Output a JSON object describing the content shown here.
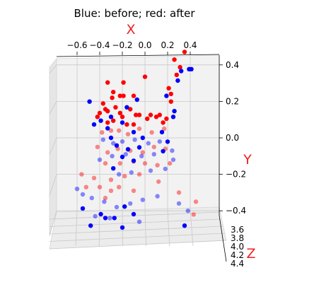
{
  "chart_data": {
    "type": "scatter",
    "title": "Blue: before; red: after",
    "xlabel": "X",
    "ylabel": "Y",
    "zlabel": "Z",
    "axis_label_color": "#ee2222",
    "x_ticks": [
      "−0.6",
      "−0.4",
      "−0.2",
      "0.0",
      "0.2",
      "0.4"
    ],
    "y_ticks": [
      "0.4",
      "0.2",
      "0.0",
      "−0.2",
      "−0.4"
    ],
    "z_ticks": [
      "3.6",
      "3.8",
      "4.0",
      "4.2",
      "4.4"
    ],
    "xlim": [
      -0.72,
      0.5
    ],
    "ylim": [
      -0.5,
      0.5
    ],
    "zlim": [
      3.6,
      4.4
    ],
    "grid": true,
    "series": [
      {
        "color": "#ff0000",
        "points": [
          [
            -0.33,
            0.29,
            0
          ],
          [
            -0.19,
            0.29,
            0
          ],
          [
            -0.28,
            0.24,
            0
          ],
          [
            -0.29,
            0.21,
            0
          ],
          [
            -0.22,
            0.22,
            0
          ],
          [
            0.0,
            0.32,
            0
          ],
          [
            -0.1,
            0.22,
            0
          ],
          [
            0.21,
            0.26,
            0
          ],
          [
            0.23,
            0.23,
            0
          ],
          [
            0.23,
            0.19,
            0
          ],
          [
            0.28,
            0.33,
            0
          ],
          [
            0.26,
            0.41,
            0
          ],
          [
            0.31,
            0.37,
            0
          ],
          [
            0.35,
            0.45,
            0
          ],
          [
            -0.37,
            0.18,
            0
          ],
          [
            -0.35,
            0.15,
            0
          ],
          [
            -0.4,
            0.13,
            0
          ],
          [
            -0.42,
            0.11,
            0
          ],
          [
            -0.33,
            0.14,
            0
          ],
          [
            -0.19,
            0.22,
            0
          ],
          [
            -0.26,
            0.16,
            0
          ],
          [
            -0.22,
            0.13,
            0
          ],
          [
            -0.13,
            0.15,
            0
          ],
          [
            -0.08,
            0.12,
            0
          ],
          [
            -0.05,
            0.12,
            0
          ],
          [
            0.05,
            0.12,
            0
          ],
          [
            0.1,
            0.11,
            0
          ],
          [
            0.13,
            0.12,
            0
          ],
          [
            0.19,
            0.1,
            0
          ],
          [
            -0.33,
            0.08,
            0
          ],
          [
            -0.28,
            0.09,
            0
          ],
          [
            -0.2,
            0.11,
            0
          ],
          [
            -0.16,
            0.07,
            0
          ],
          [
            -0.1,
            0.07,
            0
          ],
          [
            0.02,
            0.1,
            0
          ],
          [
            0.16,
            0.08,
            0
          ],
          [
            -0.38,
            0.03,
            1
          ],
          [
            -0.3,
            0.04,
            1
          ],
          [
            -0.23,
            0.04,
            1
          ],
          [
            -0.15,
            0.02,
            1
          ],
          [
            -0.05,
            0.05,
            1
          ],
          [
            0.06,
            0.03,
            1
          ],
          [
            0.17,
            0.05,
            1
          ],
          [
            -0.42,
            -0.05,
            1
          ],
          [
            -0.33,
            -0.08,
            1
          ],
          [
            -0.24,
            -0.06,
            1
          ],
          [
            -0.13,
            -0.07,
            1
          ],
          [
            -0.02,
            -0.08,
            1
          ],
          [
            0.08,
            -0.05,
            1
          ],
          [
            0.18,
            -0.06,
            1
          ],
          [
            -0.35,
            -0.14,
            1
          ],
          [
            -0.22,
            -0.14,
            1
          ],
          [
            -0.1,
            -0.13,
            1
          ],
          [
            0.0,
            -0.14,
            1
          ],
          [
            0.11,
            -0.15,
            1
          ],
          [
            0.22,
            -0.14,
            1
          ],
          [
            -0.45,
            -0.22,
            1
          ],
          [
            -0.3,
            -0.23,
            1
          ],
          [
            -0.18,
            -0.21,
            1
          ],
          [
            -0.05,
            -0.2,
            1
          ],
          [
            0.12,
            -0.24,
            1
          ],
          [
            -0.56,
            -0.2,
            1
          ],
          [
            -0.52,
            -0.27,
            1
          ],
          [
            -0.4,
            -0.27,
            1
          ],
          [
            -0.23,
            -0.27,
            1
          ],
          [
            -0.1,
            -0.29,
            1
          ],
          [
            -0.35,
            -0.33,
            1
          ],
          [
            -0.3,
            -0.29,
            1
          ],
          [
            0.45,
            -0.35,
            1
          ],
          [
            0.43,
            -0.42,
            1
          ],
          [
            0.3,
            -0.3,
            1
          ]
        ]
      },
      {
        "color": "#0000ff",
        "points": [
          [
            -0.49,
            0.19,
            0
          ],
          [
            -0.45,
            0.07,
            0
          ],
          [
            -0.39,
            0.09,
            0
          ],
          [
            -0.3,
            0.11,
            0
          ],
          [
            -0.16,
            0.16,
            0
          ],
          [
            -0.07,
            0.2,
            0
          ],
          [
            0.19,
            0.22,
            0
          ],
          [
            0.25,
            0.11,
            0
          ],
          [
            0.26,
            0.14,
            0
          ],
          [
            0.29,
            0.3,
            0
          ],
          [
            0.32,
            0.35,
            0
          ],
          [
            0.39,
            0.36,
            0
          ],
          [
            0.41,
            0.36,
            0
          ],
          [
            -0.33,
            0.05,
            0
          ],
          [
            -0.2,
            0.08,
            0
          ],
          [
            -0.1,
            0.03,
            0
          ],
          [
            -0.02,
            0.0,
            0
          ],
          [
            0.15,
            0.03,
            0
          ],
          [
            0.2,
            -0.02,
            0
          ],
          [
            -0.3,
            0.0,
            0
          ],
          [
            -0.25,
            -0.04,
            0
          ],
          [
            -0.15,
            -0.06,
            0
          ],
          [
            -0.05,
            -0.05,
            0
          ],
          [
            0.16,
            -0.07,
            0
          ],
          [
            -0.2,
            -0.1,
            0
          ],
          [
            -0.1,
            -0.12,
            0
          ],
          [
            -0.28,
            -0.16,
            0
          ],
          [
            -0.35,
            -0.42,
            0
          ],
          [
            -0.48,
            -0.46,
            0
          ],
          [
            -0.39,
            -0.4,
            0
          ],
          [
            -0.27,
            -0.42,
            0
          ],
          [
            -0.18,
            -0.36,
            0
          ],
          [
            -0.1,
            -0.4,
            0
          ],
          [
            0.35,
            -0.46,
            0
          ],
          [
            -0.55,
            -0.37,
            0
          ],
          [
            -0.2,
            -0.47,
            0
          ],
          [
            -0.37,
            -0.01,
            1
          ],
          [
            -0.28,
            -0.03,
            1
          ],
          [
            -0.2,
            -0.02,
            1
          ],
          [
            -0.09,
            -0.01,
            1
          ],
          [
            0.03,
            -0.03,
            1
          ],
          [
            0.13,
            -0.02,
            1
          ],
          [
            0.24,
            -0.07,
            1
          ],
          [
            -0.4,
            -0.12,
            1
          ],
          [
            -0.29,
            -0.1,
            1
          ],
          [
            -0.17,
            -0.09,
            1
          ],
          [
            -0.03,
            -0.1,
            1
          ],
          [
            0.08,
            -0.09,
            1
          ],
          [
            0.25,
            -0.12,
            1
          ],
          [
            -0.23,
            -0.2,
            1
          ],
          [
            -0.12,
            -0.19,
            1
          ],
          [
            0.05,
            -0.18,
            1
          ],
          [
            0.18,
            -0.17,
            1
          ],
          [
            -0.6,
            -0.28,
            1
          ],
          [
            -0.55,
            -0.31,
            1
          ],
          [
            -0.47,
            -0.33,
            1
          ],
          [
            -0.36,
            -0.35,
            1
          ],
          [
            -0.25,
            -0.38,
            1
          ],
          [
            -0.13,
            -0.36,
            1
          ],
          [
            -0.02,
            -0.34,
            1
          ],
          [
            0.11,
            -0.32,
            1
          ],
          [
            0.3,
            -0.36,
            1
          ],
          [
            0.38,
            -0.4,
            1
          ],
          [
            -0.44,
            -0.43,
            1
          ],
          [
            -0.31,
            -0.44,
            1
          ],
          [
            -0.05,
            -0.46,
            1
          ]
        ]
      }
    ]
  }
}
